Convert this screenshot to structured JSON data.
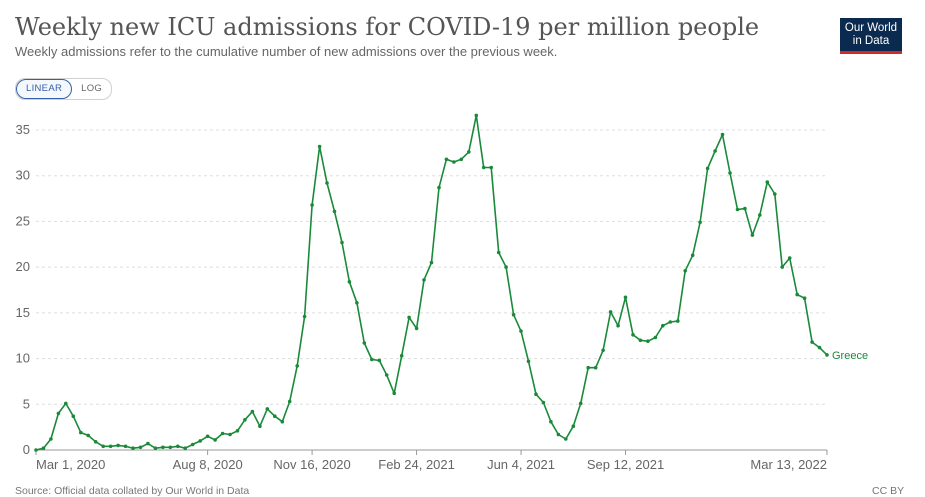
{
  "header": {
    "title": "Weekly new ICU admissions for COVID-19 per million people",
    "subtitle": "Weekly admissions refer to the cumulative number of new admissions over the previous week."
  },
  "logo": {
    "line1": "Our World",
    "line2": "in Data"
  },
  "scale_toggle": {
    "linear_label": "LINEAR",
    "log_label": "LOG",
    "selected": "LINEAR"
  },
  "footer": {
    "source": "Source: Official data collated by Our World in Data",
    "license": "CC BY"
  },
  "colors": {
    "series": "#1a8a3a",
    "grid": "#dddddd",
    "axis": "#666666",
    "logo_bg": "#0b2a50",
    "logo_accent": "#d12a2a",
    "toggle_active": "#3360a9"
  },
  "chart_data": {
    "type": "line",
    "title": "Weekly new ICU admissions for COVID-19 per million people",
    "xlabel": "",
    "ylabel": "",
    "ylim": [
      0,
      35
    ],
    "yticks": [
      0,
      5,
      10,
      15,
      20,
      25,
      30,
      35
    ],
    "y_tick_labels": [
      "0",
      "5",
      "10",
      "15",
      "20",
      "25",
      "30",
      "35"
    ],
    "x_tick_labels": [
      "Mar 1, 2020",
      "Aug 8, 2020",
      "Nov 16, 2020",
      "Feb 24, 2021",
      "Jun 4, 2021",
      "Sep 12, 2021",
      "Mar 13, 2022"
    ],
    "grid": true,
    "series": [
      {
        "name": "Greece",
        "values": [
          0,
          0.2,
          1.2,
          4,
          5.1,
          3.7,
          1.9,
          1.6,
          0.9,
          0.4,
          0.4,
          0.5,
          0.4,
          0.2,
          0.3,
          0.7,
          0.2,
          0.3,
          0.3,
          0.4,
          0.2,
          0.6,
          1,
          1.5,
          1.1,
          1.8,
          1.7,
          2.1,
          3.3,
          4.2,
          2.6,
          4.5,
          3.7,
          3.1,
          5.3,
          9.2,
          14.6,
          26.8,
          33.2,
          29.2,
          26.1,
          22.7,
          18.4,
          16.1,
          11.7,
          9.9,
          9.8,
          8.2,
          6.2,
          10.3,
          14.5,
          13.3,
          18.6,
          20.5,
          28.7,
          31.8,
          31.5,
          31.8,
          32.6,
          36.6,
          30.9,
          30.9,
          21.6,
          20,
          14.8,
          13,
          9.7,
          6.1,
          5.2,
          3.1,
          1.7,
          1.2,
          2.6,
          5.1,
          9,
          9,
          10.9,
          15.1,
          13.6,
          16.7,
          12.6,
          12,
          11.9,
          12.3,
          13.6,
          14,
          14.1,
          19.6,
          21.3,
          24.9,
          30.8,
          32.7,
          34.5,
          30.3,
          26.3,
          26.4,
          23.5,
          25.7,
          29.3,
          28,
          20,
          21,
          17,
          16.6,
          11.8,
          11.2,
          10.4
        ]
      }
    ]
  }
}
